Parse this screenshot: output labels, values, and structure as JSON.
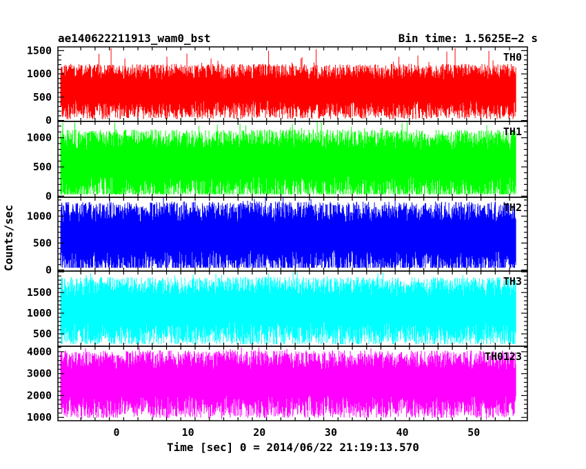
{
  "chart_data": {
    "type": "line",
    "title": "ae140622211913_wam0_bst",
    "bin_time": "Bin time: 1.5625E−2 s",
    "xlabel": "Time [sec] 0 = 2014/06/22 21:19:13.570",
    "ylabel": "Counts/sec",
    "xlim": [
      -8.2,
      57.5
    ],
    "x_data_range": [
      -7.8,
      55.9
    ],
    "xticks": [
      0,
      10,
      20,
      30,
      40,
      50
    ],
    "xtick_labels": [
      "0",
      "10",
      "20",
      "30",
      "40",
      "50"
    ],
    "panels": [
      {
        "name": "TH0",
        "color": "#ff0000",
        "ylim": [
          -20,
          1580
        ],
        "yticks": [
          0,
          500,
          1000,
          1500
        ],
        "ytick_labels": [
          "0",
          "500",
          "1000",
          "1500"
        ],
        "band_low": 230,
        "band_high": 980,
        "min": 20,
        "max": 1580
      },
      {
        "name": "TH1",
        "color": "#00ff00",
        "ylim": [
          -20,
          1280
        ],
        "yticks": [
          0,
          500,
          1000
        ],
        "ytick_labels": [
          "0",
          "500",
          "1000"
        ],
        "band_low": 130,
        "band_high": 900,
        "min": 30,
        "max": 1280
      },
      {
        "name": "TH2",
        "color": "#0000ff",
        "ylim": [
          -20,
          1350
        ],
        "yticks": [
          0,
          500,
          1000
        ],
        "ytick_labels": [
          "0",
          "500",
          "1000"
        ],
        "band_low": 140,
        "band_high": 1000,
        "min": 40,
        "max": 1350
      },
      {
        "name": "TH3",
        "color": "#00ffff",
        "ylim": [
          200,
          2020
        ],
        "yticks": [
          500,
          1000,
          1500
        ],
        "ytick_labels": [
          "500",
          "1000",
          "1500"
        ],
        "band_low": 500,
        "band_high": 1550,
        "min": 250,
        "max": 2000
      },
      {
        "name": "TH0123",
        "color": "#ff00ff",
        "ylim": [
          850,
          4250
        ],
        "yticks": [
          1000,
          2000,
          3000,
          4000
        ],
        "ytick_labels": [
          "1000",
          "2000",
          "3000",
          "4000"
        ],
        "band_low": 1500,
        "band_high": 3450,
        "min": 900,
        "max": 4200
      }
    ]
  }
}
